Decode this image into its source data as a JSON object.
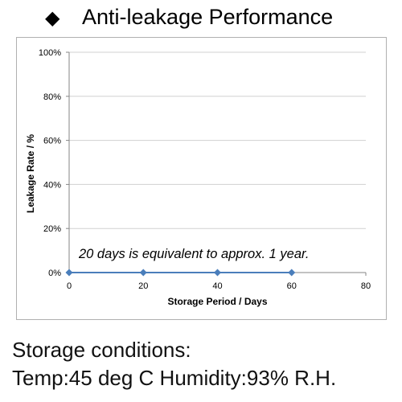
{
  "header": {
    "bullet": "◆",
    "title": "Anti-leakage Performance"
  },
  "colors": {
    "series": "#4a7ebb",
    "grid": "#d0d0d0",
    "axis": "#868686",
    "text": "#000000"
  },
  "chart_data": {
    "type": "line",
    "title": "",
    "xlabel": "Storage Period / Days",
    "ylabel": "Leakage Rate / %",
    "xlim": [
      0,
      80
    ],
    "ylim": [
      0,
      100
    ],
    "x_ticks": [
      0,
      20,
      40,
      60,
      80
    ],
    "x_tick_labels": [
      "0",
      "20",
      "40",
      "60",
      "80"
    ],
    "y_ticks": [
      0,
      20,
      40,
      60,
      80,
      100
    ],
    "y_tick_labels": [
      "0%",
      "20%",
      "40%",
      "60%",
      "80%",
      "100%"
    ],
    "grid": "horizontal",
    "legend": "none",
    "series": [
      {
        "marker": "diamond",
        "x": [
          0,
          20,
          40,
          60
        ],
        "y": [
          0,
          0,
          0,
          0
        ]
      }
    ],
    "annotations": [
      {
        "text": "20 days is equivalent to approx. 1 year."
      }
    ]
  },
  "footer": {
    "line1": "Storage conditions:",
    "line2": "Temp:45 deg C   Humidity:93%   R.H."
  }
}
